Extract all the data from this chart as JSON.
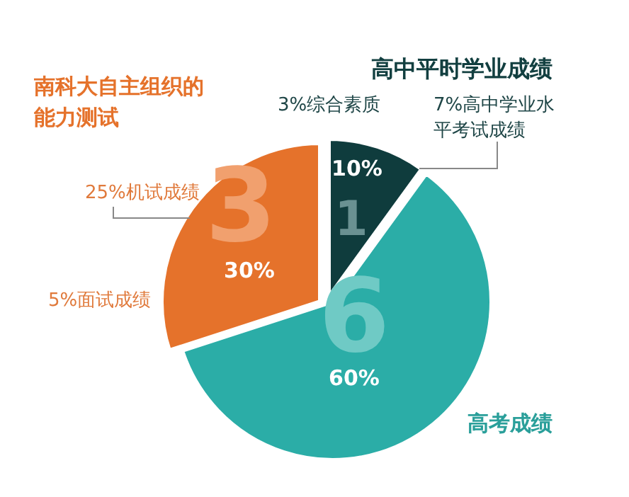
{
  "chart_data": {
    "type": "pie",
    "categories": [
      "高中平时学业成绩",
      "高考成绩",
      "南科大自主组织的能力测试"
    ],
    "values": [
      10,
      60,
      30
    ],
    "colors": [
      "#0f3c3d",
      "#2badA7",
      "#e5722b"
    ],
    "value_labels": [
      "10%",
      "60%",
      "30%"
    ],
    "annotations": [
      "3%综合素质",
      "7%高中学业水平考试成绩",
      "25%机试成绩",
      "5%面试成绩",
      "1",
      "6",
      "3"
    ]
  }
}
